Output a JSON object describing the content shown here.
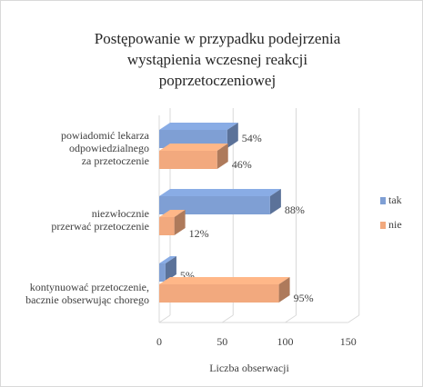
{
  "chart_data": {
    "type": "bar",
    "orientation": "horizontal",
    "style": "3d-clustered",
    "title_lines": [
      "Postępowanie  w przypadku  podejrzenia",
      "wystąpienia  wczesnej  reakcji",
      "poprzetoczeniowej"
    ],
    "xlabel": "Liczba obserwacji",
    "ylabel": "",
    "categories": [
      {
        "lines": [
          "powiadomić lekarza",
          "odpowiedzialnego",
          "za przetoczenie"
        ]
      },
      {
        "lines": [
          "niezwłocznie",
          "przerwać przetoczenie"
        ]
      },
      {
        "lines": [
          "kontynuować przetoczenie,",
          "bacznie obserwując chorego"
        ]
      }
    ],
    "series": [
      {
        "name": "tak",
        "color": "#7f9fd4",
        "values": [
          54,
          88,
          5
        ],
        "labels": [
          "54%",
          "88%",
          "5%"
        ]
      },
      {
        "name": "nie",
        "color": "#f2a97e",
        "values": [
          46,
          12,
          95
        ],
        "labels": [
          "46%",
          "12%",
          "95%"
        ]
      }
    ],
    "xlim": [
      0,
      150
    ],
    "xticks": [
      "0",
      "50",
      "100",
      "150"
    ],
    "grid": true,
    "legend_position": "right"
  }
}
